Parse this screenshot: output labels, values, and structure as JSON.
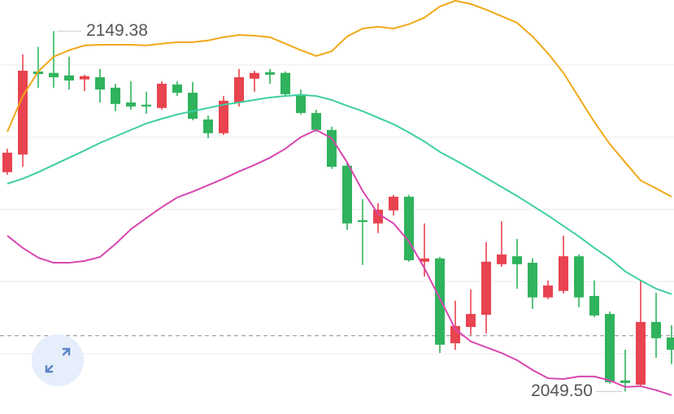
{
  "chart_data": {
    "type": "candlestick",
    "ylim": [
      2043.3,
      2158.0
    ],
    "gridlines": [
      2060,
      2080,
      2100,
      2120,
      2140
    ],
    "reference_line": 2065.0,
    "up_color": "#e8434f",
    "down_color": "#2fb35c",
    "open": [
      2110.3,
      2115.2,
      2138.2,
      2137.8,
      2137.1,
      2136.0,
      2136.6,
      2133.7,
      2129.6,
      2129.0,
      2128.1,
      2134.6,
      2132.3,
      2124.9,
      2121.1,
      2129.6,
      2136.2,
      2138.0,
      2137.8,
      2131.9,
      2126.7,
      2122.0,
      2112.1,
      2097.0,
      2096.1,
      2099.7,
      2103.5,
      2085.5,
      2086.4,
      2062.9,
      2067.4,
      2070.8,
      2084.8,
      2087.0,
      2085.2,
      2075.6,
      2077.4,
      2087.0,
      2076.0,
      2071.0,
      2052.6,
      2051.4,
      2068.8,
      2064.5
    ],
    "high": [
      2116.8,
      2142.9,
      2145.0,
      2149.38,
      2142.3,
      2137.3,
      2138.9,
      2134.8,
      2135.5,
      2132.6,
      2135.5,
      2135.5,
      2135.3,
      2126.0,
      2131.4,
      2138.9,
      2138.4,
      2138.9,
      2138.2,
      2133.2,
      2127.6,
      2122.9,
      2113.0,
      2102.8,
      2101.7,
      2104.0,
      2104.0,
      2096.1,
      2086.8,
      2074.7,
      2077.8,
      2090.9,
      2096.7,
      2091.8,
      2086.4,
      2080.3,
      2092.7,
      2087.5,
      2080.3,
      2071.7,
      2061.1,
      2080.3,
      2076.9,
      2067.9
    ],
    "low": [
      2109.6,
      2111.8,
      2133.7,
      2133.7,
      2133.2,
      2132.8,
      2129.6,
      2127.2,
      2127.6,
      2126.5,
      2127.6,
      2131.4,
      2124.7,
      2119.7,
      2120.6,
      2128.5,
      2132.6,
      2134.8,
      2131.4,
      2126.3,
      2121.5,
      2111.2,
      2094.3,
      2084.6,
      2093.4,
      2098.3,
      2085.5,
      2081.4,
      2060.2,
      2061.1,
      2065.2,
      2065.6,
      2084.1,
      2078.0,
      2072.4,
      2075.1,
      2076.7,
      2072.9,
      2070.1,
      2051.7,
      2049.5,
      2050.8,
      2058.9,
      2057.1
    ],
    "close": [
      2115.7,
      2138.4,
      2137.5,
      2136.6,
      2135.7,
      2136.9,
      2133.2,
      2129.2,
      2128.5,
      2128.5,
      2134.8,
      2132.3,
      2125.1,
      2121.1,
      2130.1,
      2136.6,
      2137.8,
      2137.3,
      2131.9,
      2126.7,
      2122.0,
      2111.8,
      2096.1,
      2096.5,
      2099.9,
      2103.5,
      2085.9,
      2086.4,
      2062.5,
      2067.7,
      2071.0,
      2085.5,
      2087.5,
      2084.8,
      2075.6,
      2078.9,
      2087.0,
      2075.6,
      2070.6,
      2052.1,
      2051.9,
      2068.8,
      2064.3,
      2061.1
    ],
    "lines": [
      {
        "color": "#f0a818",
        "values": [
          2121.5,
          2131.4,
          2138.2,
          2142.3,
          2144.1,
          2145.4,
          2145.6,
          2145.6,
          2145.6,
          2145.4,
          2145.9,
          2146.3,
          2146.3,
          2146.8,
          2147.7,
          2148.3,
          2148.1,
          2147.7,
          2145.9,
          2144.1,
          2142.5,
          2143.8,
          2147.9,
          2150.1,
          2150.6,
          2150.1,
          2151.3,
          2153.1,
          2156.2,
          2157.8,
          2156.9,
          2155.3,
          2153.5,
          2151.7,
          2147.9,
          2143.2,
          2137.8,
          2131.0,
          2124.2,
          2118.1,
          2113.0,
          2108.0,
          2105.8,
          2103.5
        ]
      },
      {
        "color": "#3dcfa0",
        "values": [
          2107.1,
          2108.5,
          2110.3,
          2112.3,
          2114.3,
          2116.3,
          2118.4,
          2120.2,
          2122.0,
          2123.8,
          2125.1,
          2126.3,
          2127.2,
          2128.1,
          2129.0,
          2129.6,
          2130.3,
          2131.0,
          2131.4,
          2131.7,
          2131.4,
          2130.3,
          2128.7,
          2127.2,
          2125.4,
          2123.6,
          2121.3,
          2118.8,
          2115.9,
          2113.6,
          2111.2,
          2108.7,
          2106.2,
          2103.7,
          2101.0,
          2098.3,
          2095.4,
          2092.5,
          2089.3,
          2086.4,
          2082.8,
          2080.3,
          2078.0,
          2076.5
        ]
      },
      {
        "color": "#d946b0",
        "values": [
          2092.7,
          2089.3,
          2086.6,
          2085.2,
          2085.2,
          2085.7,
          2086.8,
          2090.4,
          2094.5,
          2097.6,
          2100.6,
          2103.3,
          2104.9,
          2106.7,
          2108.5,
          2110.5,
          2112.3,
          2114.3,
          2116.8,
          2120.0,
          2122.0,
          2119.7,
          2113.0,
          2105.1,
          2098.8,
          2096.1,
          2091.1,
          2083.7,
          2075.3,
          2066.8,
          2063.4,
          2061.8,
          2060.2,
          2058.2,
          2055.5,
          2053.2,
          2053.0,
          2053.7,
          2053.7,
          2052.6,
          2050.8,
          2051.0,
          2049.9,
          2048.5
        ]
      }
    ],
    "high_marker": 2149.38,
    "low_marker": {
      "value": 2049.5,
      "label": "2049.50"
    }
  }
}
